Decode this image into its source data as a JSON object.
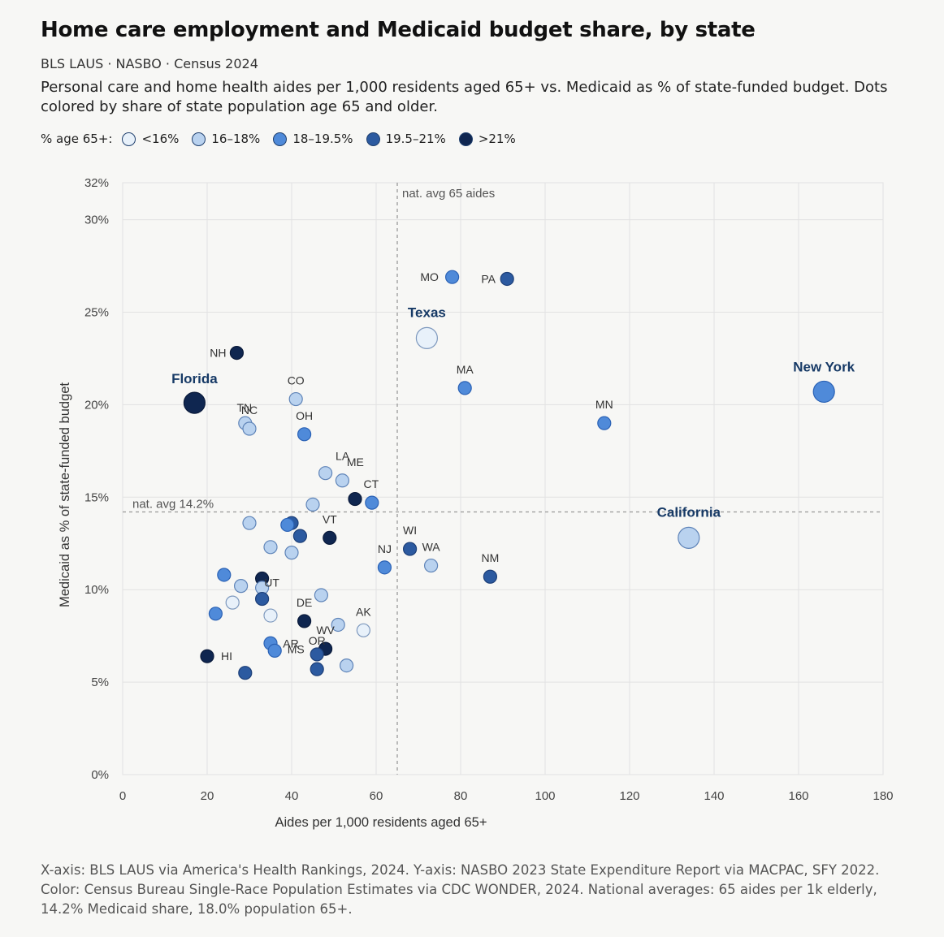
{
  "title": "Home care employment and Medicaid budget share, by state",
  "source_line": "BLS LAUS · NASBO · Census 2024",
  "subtitle": "Personal care and home health aides per 1,000 residents aged 65+ vs. Medicaid as % of state-funded budget. Dots colored by share of state population age 65 and older.",
  "legend": {
    "title": "% age 65+:",
    "items": [
      {
        "label": "<16%",
        "color": "#e8f1fa"
      },
      {
        "label": "16–18%",
        "color": "#b9d2ef"
      },
      {
        "label": "18–19.5%",
        "color": "#4f8ad9"
      },
      {
        "label": "19.5–21%",
        "color": "#2c5aa0"
      },
      {
        "label": ">21%",
        "color": "#0f2650"
      }
    ]
  },
  "footnote": "X-axis: BLS LAUS via America's Health Rankings, 2024. Y-axis: NASBO 2023 State Expenditure Report via MACPAC, SFY 2022. Color: Census Bureau Single-Race Population Estimates via CDC WONDER, 2024. National averages: 65 aides per 1k elderly, 14.2% Medicaid share, 18.0% population 65+.",
  "chart_data": {
    "type": "scatter",
    "xlabel": "Aides per 1,000 residents aged 65+",
    "ylabel": "Medicaid as % of state-funded budget",
    "xlim": [
      0,
      180
    ],
    "ylim": [
      0,
      32
    ],
    "xticks": [
      0,
      20,
      40,
      60,
      80,
      100,
      120,
      140,
      160,
      180
    ],
    "yticks": [
      0,
      5,
      10,
      15,
      20,
      25,
      30,
      32
    ],
    "ytick_labels": [
      "0%",
      "5%",
      "10%",
      "15%",
      "20%",
      "25%",
      "30%",
      "32%"
    ],
    "grid": true,
    "reference_lines": {
      "x": {
        "value": 65,
        "label": "nat. avg 65 aides"
      },
      "y": {
        "value": 14.2,
        "label": "nat. avg 14.2%"
      }
    },
    "color_by": "share of state population age 65 and older",
    "points": [
      {
        "label": "New York",
        "x": 166,
        "y": 20.7,
        "group": 2,
        "big": true
      },
      {
        "label": "California",
        "x": 134,
        "y": 12.8,
        "group": 1,
        "big": true
      },
      {
        "label": "Texas",
        "x": 72,
        "y": 23.6,
        "group": 0,
        "big": true
      },
      {
        "label": "Florida",
        "x": 17,
        "y": 20.1,
        "group": 4,
        "big": true
      },
      {
        "label": "MO",
        "x": 78,
        "y": 26.9,
        "group": 2
      },
      {
        "label": "PA",
        "x": 91,
        "y": 26.8,
        "group": 3
      },
      {
        "label": "MA",
        "x": 81,
        "y": 20.9,
        "group": 2
      },
      {
        "label": "MN",
        "x": 114,
        "y": 19.0,
        "group": 2
      },
      {
        "label": "NH",
        "x": 27,
        "y": 22.8,
        "group": 4
      },
      {
        "label": "CO",
        "x": 41,
        "y": 20.3,
        "group": 1
      },
      {
        "label": "TN",
        "x": 29,
        "y": 19.0,
        "group": 1
      },
      {
        "label": "NC",
        "x": 30,
        "y": 18.7,
        "group": 1
      },
      {
        "label": "OH",
        "x": 43,
        "y": 18.4,
        "group": 2
      },
      {
        "label": "LA",
        "x": 48,
        "y": 16.3,
        "group": 1
      },
      {
        "label": "ME",
        "x": 52,
        "y": 15.9,
        "group": 1
      },
      {
        "label": "CT",
        "x": 59,
        "y": 14.7,
        "group": 2
      },
      {
        "label": "",
        "x": 55,
        "y": 14.9,
        "group": 4
      },
      {
        "label": "",
        "x": 45,
        "y": 14.6,
        "group": 1
      },
      {
        "label": "VT",
        "x": 49,
        "y": 12.8,
        "group": 4
      },
      {
        "label": "",
        "x": 30,
        "y": 13.6,
        "group": 1
      },
      {
        "label": "",
        "x": 40,
        "y": 13.6,
        "group": 3
      },
      {
        "label": "",
        "x": 39,
        "y": 13.5,
        "group": 2
      },
      {
        "label": "",
        "x": 42,
        "y": 12.9,
        "group": 3
      },
      {
        "label": "",
        "x": 35,
        "y": 12.3,
        "group": 1
      },
      {
        "label": "",
        "x": 40,
        "y": 12.0,
        "group": 1
      },
      {
        "label": "WI",
        "x": 68,
        "y": 12.2,
        "group": 3
      },
      {
        "label": "WA",
        "x": 73,
        "y": 11.3,
        "group": 1
      },
      {
        "label": "NJ",
        "x": 62,
        "y": 11.2,
        "group": 2
      },
      {
        "label": "NM",
        "x": 87,
        "y": 10.7,
        "group": 3
      },
      {
        "label": "",
        "x": 24,
        "y": 10.8,
        "group": 2
      },
      {
        "label": "",
        "x": 28,
        "y": 10.2,
        "group": 1
      },
      {
        "label": "",
        "x": 33,
        "y": 10.6,
        "group": 4
      },
      {
        "label": "",
        "x": 33,
        "y": 10.1,
        "group": 1
      },
      {
        "label": "UT",
        "x": 33,
        "y": 9.5,
        "group": 3
      },
      {
        "label": "",
        "x": 47,
        "y": 9.7,
        "group": 1
      },
      {
        "label": "",
        "x": 26,
        "y": 9.3,
        "group": 0
      },
      {
        "label": "",
        "x": 22,
        "y": 8.7,
        "group": 2
      },
      {
        "label": "",
        "x": 35,
        "y": 8.6,
        "group": 0
      },
      {
        "label": "DE",
        "x": 43,
        "y": 8.3,
        "group": 4
      },
      {
        "label": "",
        "x": 51,
        "y": 8.1,
        "group": 1
      },
      {
        "label": "AK",
        "x": 57,
        "y": 7.8,
        "group": 0
      },
      {
        "label": "AR",
        "x": 35,
        "y": 7.1,
        "group": 2
      },
      {
        "label": "MS",
        "x": 36,
        "y": 6.7,
        "group": 2
      },
      {
        "label": "WV",
        "x": 48,
        "y": 6.8,
        "group": 4
      },
      {
        "label": "OR",
        "x": 46,
        "y": 6.5,
        "group": 3
      },
      {
        "label": "HI",
        "x": 20,
        "y": 6.4,
        "group": 4
      },
      {
        "label": "",
        "x": 53,
        "y": 5.9,
        "group": 1
      },
      {
        "label": "",
        "x": 46,
        "y": 5.7,
        "group": 3
      },
      {
        "label": "",
        "x": 29,
        "y": 5.5,
        "group": 3
      }
    ]
  }
}
